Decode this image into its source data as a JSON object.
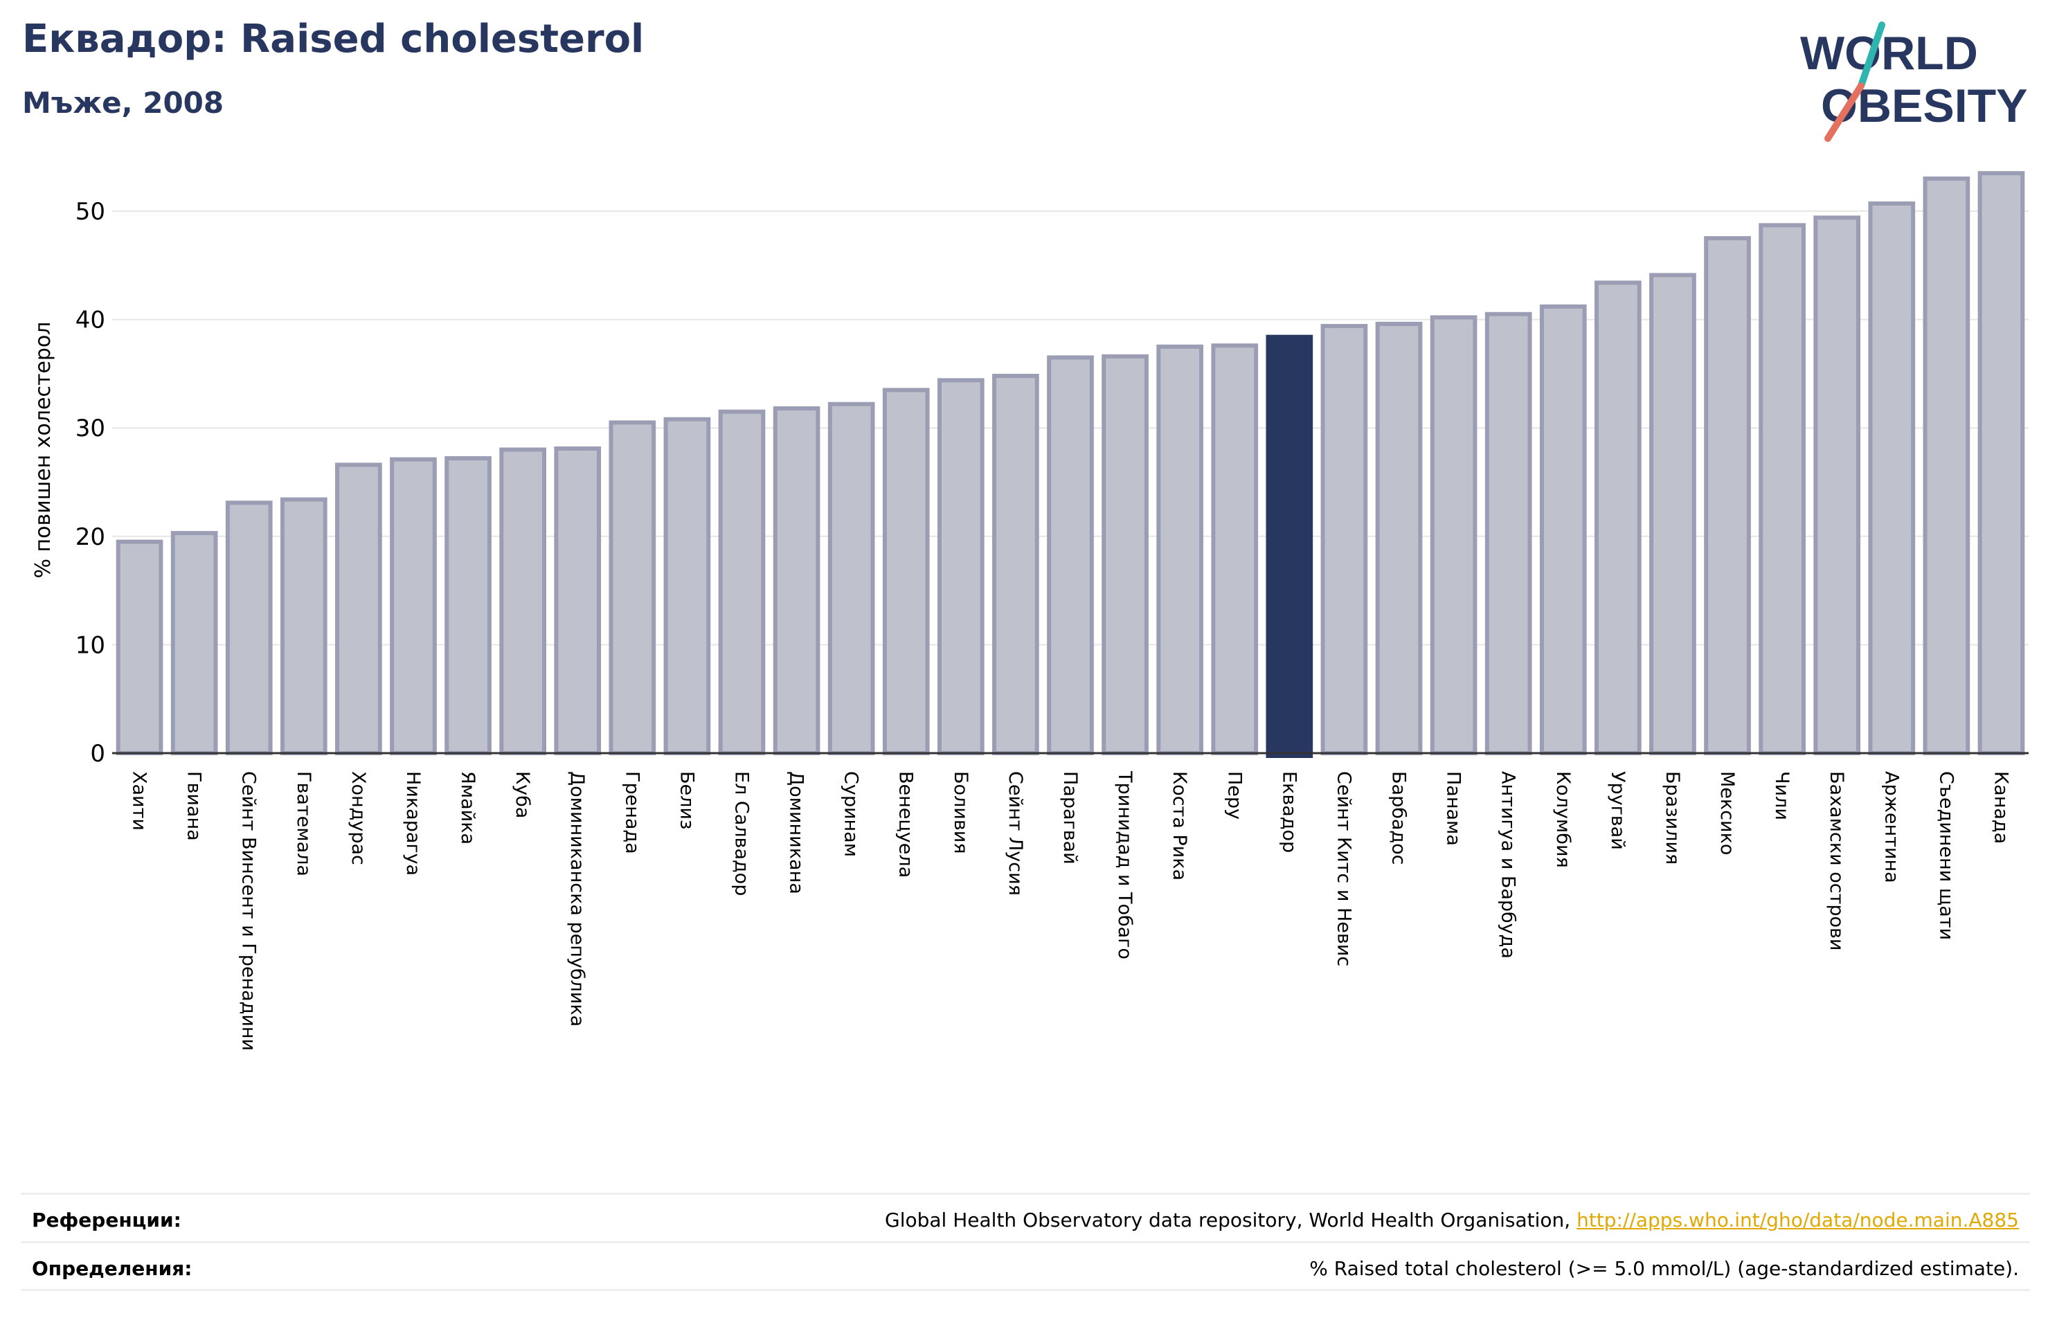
{
  "header": {
    "title": "Еквадор: Raised cholesterol",
    "subtitle": "Мъже, 2008"
  },
  "logo": {
    "line1": "WORLD",
    "line2": "OBESITY"
  },
  "colors": {
    "bar": "#bfc1cc",
    "bar_stroke": "#9a9db3",
    "highlight": "#283760",
    "title": "#283760",
    "link": "#e0a800"
  },
  "chart_data": {
    "type": "bar",
    "title": "",
    "ylabel": "% повишен холестерол",
    "xlabel": "",
    "ylim": [
      0,
      55
    ],
    "yticks": [
      0,
      10,
      20,
      30,
      40,
      50
    ],
    "grid": true,
    "highlight": "Еквадор",
    "categories": [
      "Хаити",
      "Гвиана",
      "Сейнт Винсент и Гренадини",
      "Гватемала",
      "Хондурас",
      "Никарагуа",
      "Ямайка",
      "Куба",
      "Доминиканска република",
      "Гренада",
      "Белиз",
      "Ел Салвадор",
      "Доминикана",
      "Суринам",
      "Венецуела",
      "Боливия",
      "Сейнт Лусия",
      "Парагвай",
      "Тринидад и Тобаго",
      "Коста Рика",
      "Перу",
      "Еквадор",
      "Сейнт Китс и Невис",
      "Барбадос",
      "Панама",
      "Антигуа и Барбуда",
      "Колумбия",
      "Уругвай",
      "Бразилия",
      "Мексико",
      "Чили",
      "Бахамски острови",
      "Аржентина",
      "Съединени щати",
      "Канада"
    ],
    "values": [
      19.5,
      20.3,
      23.1,
      23.4,
      26.6,
      27.1,
      27.2,
      28.0,
      28.1,
      30.5,
      30.8,
      31.5,
      31.8,
      32.2,
      33.5,
      34.4,
      34.8,
      36.5,
      36.6,
      37.5,
      37.6,
      38.4,
      39.4,
      39.6,
      40.2,
      40.5,
      41.2,
      43.4,
      44.1,
      47.5,
      48.7,
      49.4,
      50.7,
      53.0,
      53.5
    ]
  },
  "footer": {
    "references_label": "Референции:",
    "references_text": "Global Health Observatory data repository, World Health Organisation, ",
    "references_link": "http://apps.who.int/gho/data/node.main.A885",
    "definitions_label": "Определения:",
    "definitions_text": "% Raised total cholesterol (>= 5.0 mmol/L) (age-standardized estimate)."
  }
}
